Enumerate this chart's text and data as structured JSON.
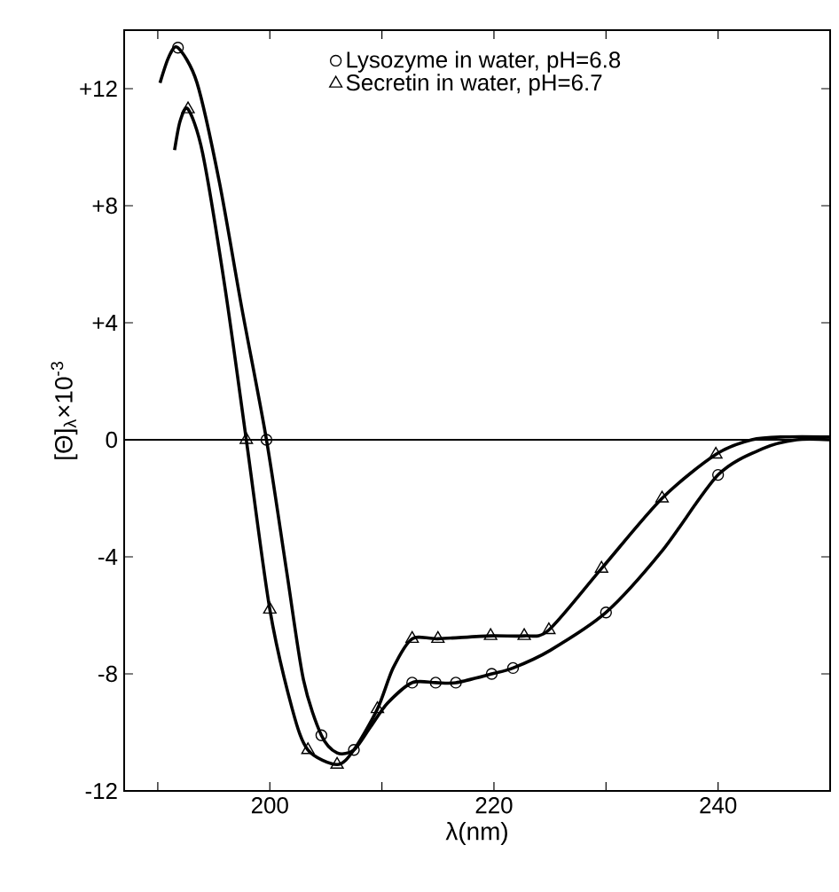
{
  "chart_data": {
    "type": "line",
    "xlabel": "λ(nm)",
    "ylabel": "[Θ]$_{λ}$×10$^{-3}$",
    "xlim": [
      187,
      250
    ],
    "ylim": [
      -12,
      14
    ],
    "xticks": [
      {
        "value": 190,
        "label": null
      },
      200,
      {
        "value": 210,
        "label": null
      },
      220,
      {
        "value": 230,
        "label": null
      },
      240
    ],
    "yticks": [
      {
        "value": 12,
        "label": "+12"
      },
      {
        "value": 8,
        "label": "+8"
      },
      {
        "value": 4,
        "label": "+4"
      },
      0,
      -4,
      -8,
      -12
    ],
    "grid": false,
    "legend": "top",
    "ref_lines": [
      {
        "axis": "y",
        "value": 0,
        "color": "#000000"
      }
    ],
    "series": [
      {
        "color": "#000000",
        "marker": "none",
        "x": [
          190.2,
          191.0,
          191.8,
          193.5,
          195.5,
          197.5,
          199.7,
          201.5,
          203,
          204.6,
          206,
          207.5,
          209,
          210.5,
          212.7,
          214.8,
          216.6,
          219.8,
          221.7,
          225,
          230,
          235,
          240,
          244,
          247,
          250
        ],
        "values": [
          12.2,
          13.1,
          13.4,
          12.2,
          8.8,
          4.5,
          0,
          -4.5,
          -8.2,
          -10.1,
          -10.7,
          -10.6,
          -9.8,
          -9.0,
          -8.3,
          -8.3,
          -8.3,
          -8.0,
          -7.8,
          -7.2,
          -5.9,
          -3.8,
          -1.2,
          -0.3,
          0,
          0
        ]
      },
      {
        "type": "scatter",
        "name": "Lysozyme in water, pH=6.8",
        "color": "#000000",
        "marker": "circle",
        "x": [
          191.8,
          199.7,
          204.6,
          207.5,
          212.7,
          214.8,
          216.6,
          219.8,
          221.7,
          230,
          240
        ],
        "values": [
          13.4,
          0,
          -10.1,
          -10.6,
          -8.3,
          -8.3,
          -8.3,
          -8.0,
          -7.8,
          -5.9,
          -1.2
        ]
      },
      {
        "color": "#000000",
        "marker": "none",
        "x": [
          191.5,
          192.0,
          192.7,
          194,
          196,
          197.9,
          200,
          202,
          203.4,
          206,
          207.5,
          209.6,
          211,
          212.7,
          215,
          219.7,
          222.7,
          224.9,
          229.6,
          235,
          239.8,
          243,
          246,
          250
        ],
        "values": [
          9.9,
          10.9,
          11.3,
          9.8,
          5.2,
          0,
          -5.8,
          -9.2,
          -10.6,
          -11.1,
          -10.6,
          -9.2,
          -7.8,
          -6.8,
          -6.8,
          -6.7,
          -6.7,
          -6.5,
          -4.4,
          -2.0,
          -0.5,
          0,
          0.1,
          0.1
        ]
      },
      {
        "type": "scatter",
        "name": "Secretin in water, pH=6.7",
        "color": "#000000",
        "marker": "triangle",
        "x": [
          192.7,
          197.9,
          200,
          203.4,
          206,
          209.6,
          212.7,
          215,
          219.7,
          222.7,
          224.9,
          229.6,
          235,
          239.8
        ],
        "values": [
          11.3,
          0,
          -5.8,
          -10.6,
          -11.1,
          -9.2,
          -6.8,
          -6.8,
          -6.7,
          -6.7,
          -6.5,
          -4.4,
          -2.0,
          -0.5
        ]
      }
    ]
  }
}
